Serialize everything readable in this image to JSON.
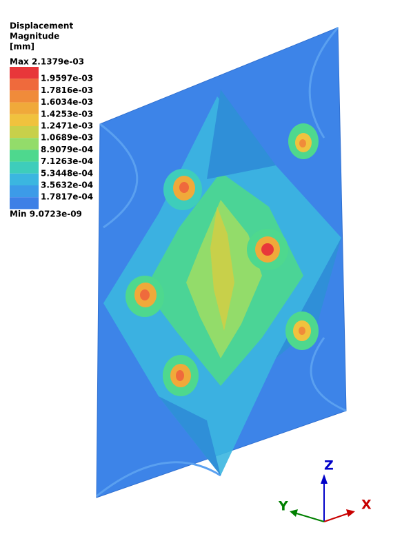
{
  "legend": {
    "title": [
      "Displacement",
      "Magnitude",
      "[mm]"
    ],
    "max": "Max 2.1379e-03",
    "colors": [
      "#e8373a",
      "#ef6a3c",
      "#f08b3a",
      "#f0a93a",
      "#f0c23e",
      "#c8d04a",
      "#93dc6a",
      "#4ed88e",
      "#3ecdbb",
      "#3bb6e0",
      "#3c9be8",
      "#3d80e6"
    ],
    "levels": [
      "1.9597e-03",
      "1.7816e-03",
      "1.6034e-03",
      "1.4253e-03",
      "1.2471e-03",
      "1.0689e-03",
      "8.9079e-04",
      "7.1263e-04",
      "5.3448e-04",
      "3.5632e-04",
      "1.7817e-04"
    ],
    "min": "Min 9.0723e-09"
  },
  "triad": {
    "x": "X",
    "y": "Y",
    "z": "Z"
  }
}
